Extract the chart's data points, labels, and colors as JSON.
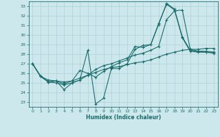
{
  "xlabel": "Humidex (Indice chaleur)",
  "bg_color": "#cce8ec",
  "line_color": "#1a6b6b",
  "grid_color": "#aed0d6",
  "xlim": [
    -0.5,
    23.5
  ],
  "ylim": [
    22.5,
    33.5
  ],
  "xticks": [
    0,
    1,
    2,
    3,
    4,
    5,
    6,
    7,
    8,
    9,
    10,
    11,
    12,
    13,
    14,
    15,
    16,
    17,
    18,
    19,
    20,
    21,
    22,
    23
  ],
  "yticks": [
    23,
    24,
    25,
    26,
    27,
    28,
    29,
    30,
    31,
    32,
    33
  ],
  "lines": [
    {
      "x": [
        0,
        1,
        2,
        3,
        4,
        5,
        6,
        7,
        8,
        9,
        10,
        11,
        12,
        13,
        14,
        15,
        16,
        17,
        18,
        19,
        20,
        21,
        22,
        23
      ],
      "y": [
        27.0,
        25.7,
        25.1,
        25.2,
        24.3,
        25.0,
        25.3,
        28.4,
        22.8,
        23.4,
        26.5,
        26.5,
        27.0,
        28.5,
        28.9,
        29.0,
        31.2,
        33.2,
        32.6,
        29.7,
        28.3,
        28.2,
        28.2,
        28.2
      ]
    },
    {
      "x": [
        0,
        1,
        2,
        3,
        4,
        5,
        6,
        7,
        8,
        9,
        10,
        11,
        12,
        13,
        14,
        15,
        16,
        17,
        18,
        19,
        20,
        21,
        22,
        23
      ],
      "y": [
        27.0,
        25.7,
        25.3,
        25.2,
        25.1,
        25.2,
        25.5,
        25.8,
        26.1,
        26.4,
        26.6,
        26.7,
        26.9,
        27.1,
        27.2,
        27.4,
        27.7,
        28.0,
        28.2,
        28.4,
        28.5,
        28.5,
        28.6,
        28.6
      ]
    },
    {
      "x": [
        0,
        1,
        2,
        3,
        4,
        5,
        6,
        7,
        8,
        9,
        10,
        11,
        12,
        13,
        14,
        15,
        16,
        17,
        18,
        19,
        20,
        21,
        22,
        23
      ],
      "y": [
        27.0,
        25.7,
        25.1,
        25.0,
        24.8,
        25.0,
        25.3,
        25.8,
        26.4,
        26.8,
        27.0,
        27.3,
        27.6,
        27.9,
        28.1,
        28.4,
        28.8,
        31.6,
        32.5,
        32.6,
        28.5,
        28.3,
        28.2,
        28.1
      ]
    },
    {
      "x": [
        0,
        1,
        2,
        3,
        4,
        5,
        6,
        7,
        8,
        9,
        10,
        11,
        12,
        13,
        14,
        15,
        16,
        17,
        18,
        19,
        20,
        21,
        22,
        23
      ],
      "y": [
        27.0,
        25.7,
        25.1,
        25.2,
        24.9,
        25.2,
        26.3,
        26.0,
        25.6,
        26.2,
        26.7,
        27.1,
        27.4,
        28.8,
        28.7,
        29.0,
        31.1,
        33.3,
        32.7,
        29.8,
        28.4,
        28.3,
        28.3,
        28.2
      ]
    }
  ]
}
